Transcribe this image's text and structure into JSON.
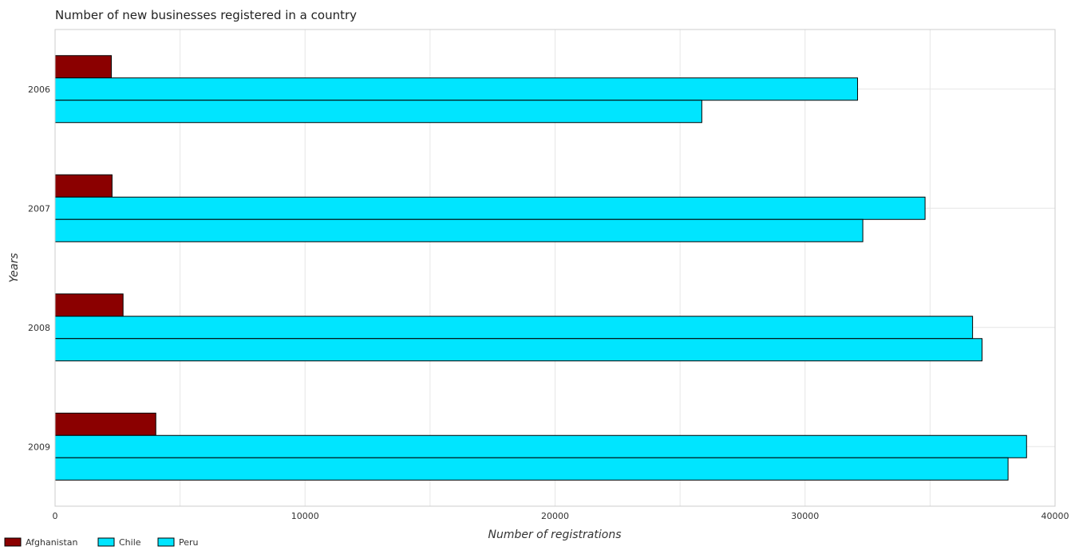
{
  "chart_data": {
    "type": "bar",
    "orientation": "horizontal",
    "title": "Number of new businesses registered in a country",
    "xlabel": "Number of registrations",
    "ylabel": "Years",
    "categories": [
      "2006",
      "2007",
      "2008",
      "2009"
    ],
    "series": [
      {
        "name": "Afghanistan",
        "color": "#8b0000",
        "values": [
          2250,
          2280,
          2720,
          4030
        ]
      },
      {
        "name": "Chile",
        "color": "#00e5ff",
        "values": [
          32100,
          34800,
          36700,
          38860
        ]
      },
      {
        "name": "Peru",
        "color": "#00e5ff",
        "values": [
          25870,
          32310,
          37080,
          38120
        ]
      }
    ],
    "xlim": [
      0,
      40000
    ],
    "xticks": [
      "0",
      "10000",
      "20000",
      "30000",
      "40000"
    ],
    "xtick_values": [
      0,
      10000,
      20000,
      30000,
      40000
    ],
    "grid": true,
    "legend_position": "bottom-left"
  }
}
